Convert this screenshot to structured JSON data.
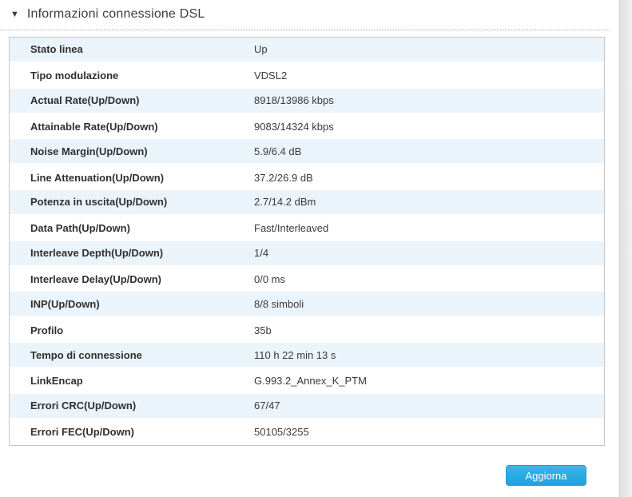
{
  "header": {
    "collapse_icon": "▼",
    "title": "Informazioni connessione DSL"
  },
  "table": {
    "rows": [
      {
        "label": "Stato linea",
        "value": "Up"
      },
      {
        "label": "Tipo modulazione",
        "value": "VDSL2"
      },
      {
        "label": "Actual Rate(Up/Down)",
        "value": "8918/13986 kbps"
      },
      {
        "label": "Attainable Rate(Up/Down)",
        "value": "9083/14324 kbps"
      },
      {
        "label": "Noise Margin(Up/Down)",
        "value": "5.9/6.4 dB"
      },
      {
        "label": "Line Attenuation(Up/Down)",
        "value": "37.2/26.9 dB"
      },
      {
        "label": "Potenza in uscita(Up/Down)",
        "value": "2.7/14.2 dBm"
      },
      {
        "label": "Data Path(Up/Down)",
        "value": "Fast/Interleaved"
      },
      {
        "label": "Interleave Depth(Up/Down)",
        "value": "1/4"
      },
      {
        "label": "Interleave Delay(Up/Down)",
        "value": "0/0 ms"
      },
      {
        "label": "INP(Up/Down)",
        "value": "8/8 simboli"
      },
      {
        "label": "Profilo",
        "value": "35b"
      },
      {
        "label": "Tempo di connessione",
        "value": "110 h 22 min 13 s"
      },
      {
        "label": "LinkEncap",
        "value": "G.993.2_Annex_K_PTM"
      },
      {
        "label": "Errori CRC(Up/Down)",
        "value": "67/47"
      },
      {
        "label": "Errori FEC(Up/Down)",
        "value": "50105/3255"
      }
    ]
  },
  "actions": {
    "refresh_label": "Aggiorna"
  },
  "colors": {
    "accent": "#2BACE3",
    "row_alt": "#EBF4FB",
    "table_border": "#C6C6C6",
    "text": "#333333"
  }
}
